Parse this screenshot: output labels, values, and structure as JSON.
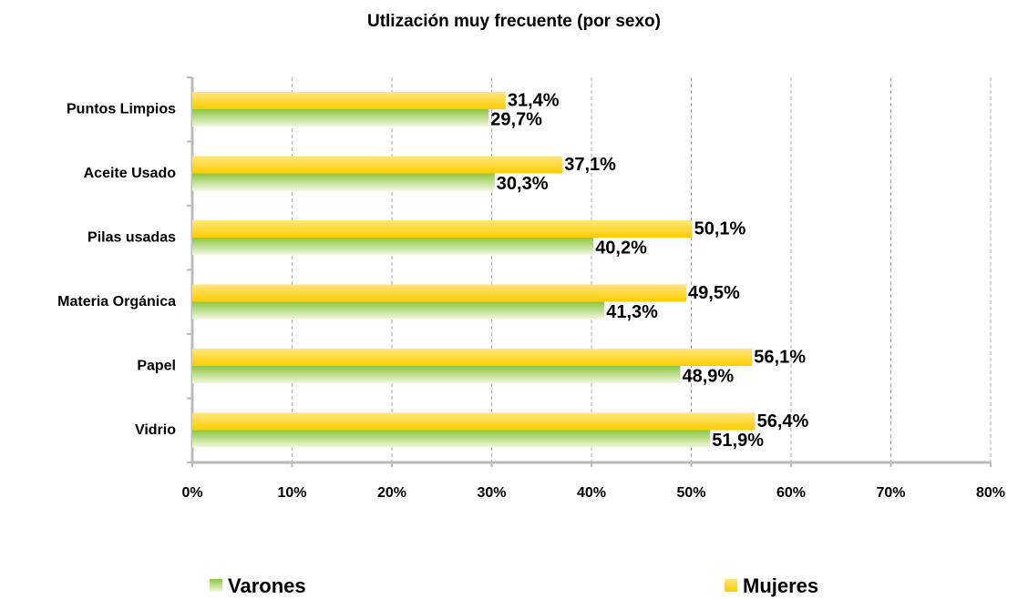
{
  "chart_data": {
    "type": "bar",
    "orientation": "horizontal",
    "title": "Utlización muy frecuente (por sexo)",
    "categories": [
      "Puntos Limpios",
      "Aceite Usado",
      "Pilas usadas",
      "Materia Orgánica",
      "Papel",
      "Vidrio"
    ],
    "series": [
      {
        "name": "Varones",
        "color": "#8cc63f",
        "values": [
          29.7,
          30.3,
          40.2,
          41.3,
          48.9,
          51.9
        ],
        "value_labels": [
          "29,7%",
          "30,3%",
          "40,2%",
          "41,3%",
          "48,9%",
          "51,9%"
        ]
      },
      {
        "name": "Mujeres",
        "color": "#ffcc00",
        "values": [
          31.4,
          37.1,
          50.1,
          49.5,
          56.1,
          56.4
        ],
        "value_labels": [
          "31,4%",
          "37,1%",
          "50,1%",
          "49,5%",
          "56,1%",
          "56,4%"
        ]
      }
    ],
    "xlim": [
      0,
      80
    ],
    "xticks": [
      {
        "value": 0,
        "label": "0%"
      },
      {
        "value": 10,
        "label": "10%"
      },
      {
        "value": 20,
        "label": "20%"
      },
      {
        "value": 30,
        "label": "30%"
      },
      {
        "value": 40,
        "label": "40%"
      },
      {
        "value": 50,
        "label": "50%"
      },
      {
        "value": 60,
        "label": "60%"
      },
      {
        "value": 70,
        "label": "70%"
      },
      {
        "value": 80,
        "label": "80%"
      }
    ],
    "grid": true
  }
}
